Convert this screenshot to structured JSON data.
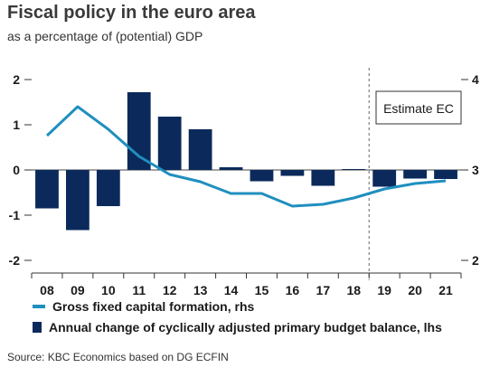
{
  "header": {
    "title": "Fiscal policy in the euro area",
    "subtitle": "as a percentage of (potential) GDP"
  },
  "legend": {
    "line_label": "Gross fixed capital formation, rhs",
    "bar_label": "Annual change of cyclically adjusted primary budget balance, lhs"
  },
  "source": "Source: KBC Economics based on DG ECFIN",
  "chart_data": {
    "type": "bar+line",
    "categories": [
      "08",
      "09",
      "10",
      "11",
      "12",
      "13",
      "14",
      "15",
      "16",
      "17",
      "18",
      "19",
      "20",
      "21"
    ],
    "series": [
      {
        "name": "Annual change of cyclically adjusted primary budget balance, lhs",
        "type": "bar",
        "axis": "left",
        "color": "#0b2a5b",
        "values": [
          -0.85,
          -1.33,
          -0.8,
          1.72,
          1.18,
          0.9,
          0.06,
          -0.25,
          -0.13,
          -0.35,
          0.02,
          -0.37,
          -0.19,
          -0.2
        ]
      },
      {
        "name": "Gross fixed capital formation, rhs",
        "type": "line",
        "axis": "right",
        "color": "#1f8fbf",
        "values": [
          3.38,
          3.7,
          3.45,
          3.15,
          2.95,
          2.87,
          2.74,
          2.74,
          2.6,
          2.62,
          2.69,
          2.79,
          2.85,
          2.88
        ]
      }
    ],
    "y_left": {
      "ticks": [
        2,
        1,
        0,
        -1,
        -2
      ],
      "ylim": [
        -2,
        2
      ]
    },
    "y_right": {
      "ticks": [
        4,
        3,
        2
      ],
      "ylim": [
        2,
        4
      ]
    },
    "annotation": {
      "text": "Estimate EC",
      "divider_after": "18"
    },
    "grid": false
  }
}
